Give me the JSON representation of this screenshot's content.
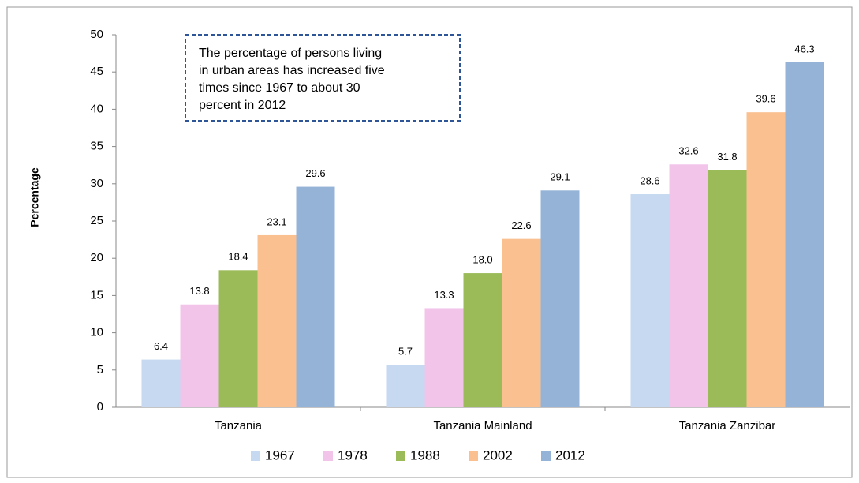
{
  "chart_data": {
    "type": "bar",
    "ylabel": "Percentage",
    "annotation": [
      "The percentage of persons living",
      "in urban areas has increased five",
      "times since 1967 to about 30",
      "percent in 2012"
    ],
    "categories": [
      "Tanzania",
      "Tanzania Mainland",
      "Tanzania Zanzibar"
    ],
    "series": [
      {
        "name": "1967",
        "color": "#c6d9f0",
        "values": [
          6.4,
          5.7,
          28.6
        ]
      },
      {
        "name": "1978",
        "color": "#f2c4ea",
        "values": [
          13.8,
          13.3,
          32.6
        ]
      },
      {
        "name": "1988",
        "color": "#9bbb59",
        "values": [
          18.4,
          18,
          31.8
        ],
        "value_labels": [
          "18.4",
          "18.0",
          "31.8"
        ]
      },
      {
        "name": "2002",
        "color": "#fac090",
        "values": [
          23.1,
          22.6,
          39.6
        ]
      },
      {
        "name": "2012",
        "color": "#95b3d7",
        "values": [
          29.6,
          29.1,
          46.3
        ]
      }
    ],
    "ylim": [
      0,
      50
    ],
    "yticks": [
      0,
      5,
      10,
      15,
      20,
      25,
      30,
      35,
      40,
      45,
      50
    ],
    "grid": false,
    "legend": "bottom"
  }
}
